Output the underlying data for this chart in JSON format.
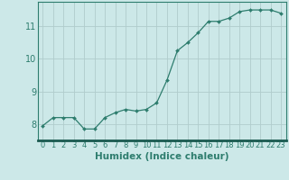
{
  "x": [
    0,
    1,
    2,
    3,
    4,
    5,
    6,
    7,
    8,
    9,
    10,
    11,
    12,
    13,
    14,
    15,
    16,
    17,
    18,
    19,
    20,
    21,
    22,
    23
  ],
  "y": [
    7.95,
    8.2,
    8.2,
    8.2,
    7.85,
    7.85,
    8.2,
    8.35,
    8.45,
    8.4,
    8.45,
    8.65,
    9.35,
    10.25,
    10.5,
    10.8,
    11.15,
    11.15,
    11.25,
    11.45,
    11.5,
    11.5,
    11.5,
    11.4
  ],
  "line_color": "#2e7d6e",
  "marker": "D",
  "marker_size": 2.0,
  "bg_color": "#cce8e8",
  "grid_color": "#b0cccc",
  "xlabel": "Humidex (Indice chaleur)",
  "xlim": [
    -0.5,
    23.5
  ],
  "ylim": [
    7.5,
    11.75
  ],
  "yticks": [
    8,
    9,
    10,
    11
  ],
  "xticks": [
    0,
    1,
    2,
    3,
    4,
    5,
    6,
    7,
    8,
    9,
    10,
    11,
    12,
    13,
    14,
    15,
    16,
    17,
    18,
    19,
    20,
    21,
    22,
    23
  ],
  "xlabel_fontsize": 7.5,
  "ytick_fontsize": 7,
  "xtick_fontsize": 6,
  "tick_color": "#2e7d6e",
  "spine_color": "#2e7d6e",
  "bottom_spine_color": "#1a5a50"
}
